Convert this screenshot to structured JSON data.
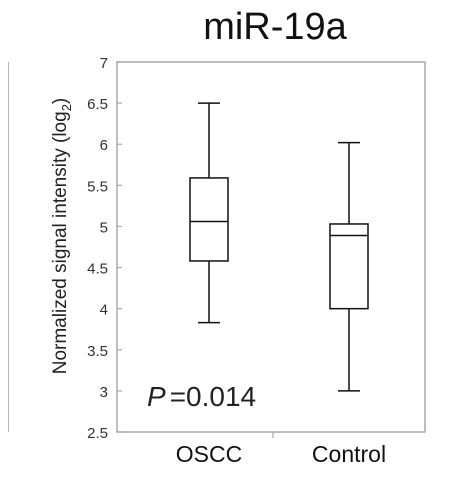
{
  "chart_data": {
    "type": "box",
    "title": "miR-19a",
    "ylabel_main": "Normalized signal intensity (log",
    "ylabel_sub": "2",
    "ylabel_close": ")",
    "ylim": [
      2.5,
      7
    ],
    "yticks": [
      2.5,
      3,
      3.5,
      4,
      4.5,
      5,
      5.5,
      6,
      6.5,
      7
    ],
    "ytick_labels": [
      "2.5",
      "3",
      "3.5",
      "4",
      "4.5",
      "5",
      "5.5",
      "6",
      "6.5",
      "7"
    ],
    "categories": [
      "OSCC",
      "Control"
    ],
    "boxes": [
      {
        "category": "OSCC",
        "min": 3.83,
        "q1": 4.58,
        "median": 5.06,
        "q3": 5.59,
        "max": 6.5
      },
      {
        "category": "Control",
        "min": 3.0,
        "q1": 4.0,
        "median": 4.89,
        "q3": 5.03,
        "max": 6.02
      }
    ],
    "annotation": {
      "p_symbol": "P",
      "p_text": "=0.014"
    },
    "grid": false,
    "colors": {
      "box_fill": "#ffffff",
      "line": "#111111",
      "frame": "#a8a8a8"
    }
  }
}
